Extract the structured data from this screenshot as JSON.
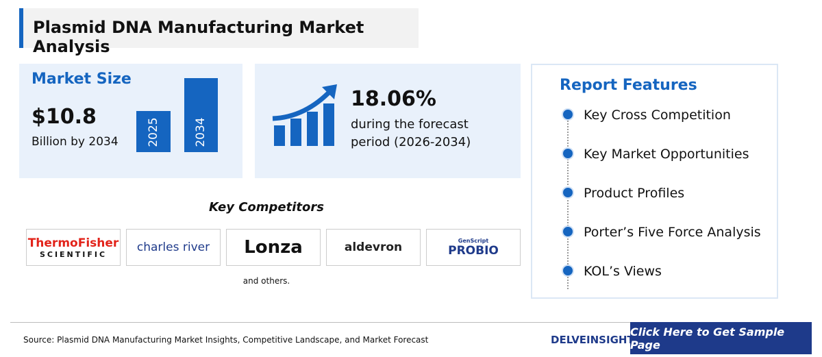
{
  "header": {
    "title": "Plasmid DNA Manufacturing Market Analysis"
  },
  "market_size": {
    "heading": "Market Size",
    "value": "$10.8",
    "caption": "Billion by 2034",
    "bars": [
      "2025",
      "2034"
    ]
  },
  "cagr": {
    "value": "18.06%",
    "caption_line1": "during the forecast",
    "caption_line2": "period (2026-2034)"
  },
  "report_features": {
    "heading": "Report Features",
    "items": [
      "Key Cross Competition",
      "Key Market Opportunities",
      "Product Profiles",
      "Porter’s Five Force Analysis",
      "KOL’s Views"
    ]
  },
  "competitors": {
    "heading": "Key Competitors",
    "logos": [
      [
        "ThermoFisher",
        "SCIENTIFIC"
      ],
      [
        "charles river"
      ],
      [
        "Lonza"
      ],
      [
        "aldevron"
      ],
      [
        "GenScript",
        "PROBIO"
      ]
    ],
    "note": "and others."
  },
  "footer": {
    "source": "Source: Plasmid DNA Manufacturing Market Insights, Competitive Landscape, and Market Forecast",
    "brand": "DELVEINSIGHT",
    "button": "Click Here to Get Sample Page"
  }
}
